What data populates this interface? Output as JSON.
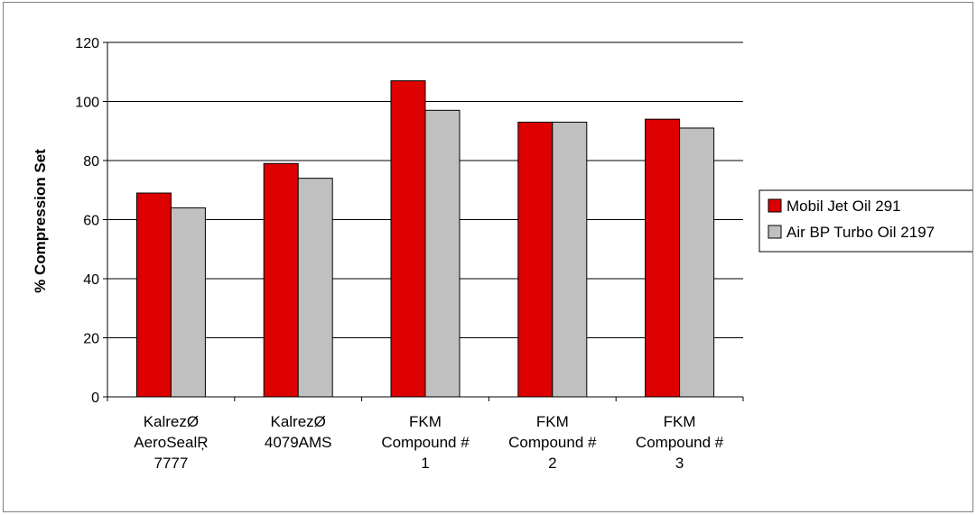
{
  "chart_data": {
    "type": "bar",
    "title": "",
    "xlabel": "",
    "ylabel": "% Compression Set",
    "ylim": [
      0,
      120
    ],
    "yticks": [
      0,
      20,
      40,
      60,
      80,
      100,
      120
    ],
    "grid": true,
    "legend_position": "right",
    "categories": [
      [
        "KalrezØ",
        "AeroSealŖ",
        "7777"
      ],
      [
        "KalrezØ",
        "4079AMS"
      ],
      [
        "FKM",
        "Compound #",
        "1"
      ],
      [
        "FKM",
        "Compound #",
        "2"
      ],
      [
        "FKM",
        "Compound #",
        "3"
      ]
    ],
    "series": [
      {
        "name": "Mobil Jet Oil 291",
        "color": "#dd0000",
        "values": [
          69,
          79,
          107,
          93,
          94
        ]
      },
      {
        "name": "Air BP Turbo Oil 2197",
        "color": "#c0c0c0",
        "values": [
          64,
          74,
          97,
          93,
          91
        ]
      }
    ]
  }
}
